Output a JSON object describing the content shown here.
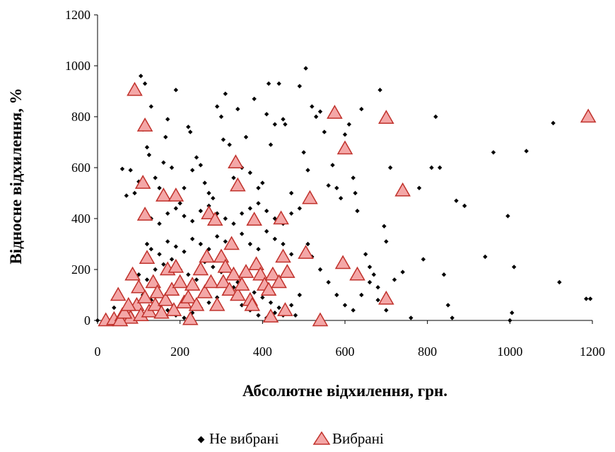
{
  "chart_data": {
    "type": "scatter",
    "xlabel": "Абсолютне відхилення, грн.",
    "ylabel": "Відносне відхилення, %",
    "xlim": [
      0,
      1200
    ],
    "ylim": [
      0,
      1200
    ],
    "xticks": [
      "0",
      "200",
      "400",
      "600",
      "800",
      "1000",
      "1200"
    ],
    "yticks": [
      "0",
      "200",
      "400",
      "600",
      "800",
      "1000",
      "1200"
    ],
    "grid": false,
    "legend_position": "bottom",
    "series": [
      {
        "name": "Не вибрані",
        "marker": "diamond",
        "color": "#000000",
        "points": [
          [
            0,
            0
          ],
          [
            40,
            50
          ],
          [
            60,
            595
          ],
          [
            70,
            490
          ],
          [
            80,
            590
          ],
          [
            90,
            500
          ],
          [
            100,
            545
          ],
          [
            105,
            960
          ],
          [
            110,
            750
          ],
          [
            115,
            930
          ],
          [
            120,
            680
          ],
          [
            125,
            650
          ],
          [
            130,
            840
          ],
          [
            140,
            560
          ],
          [
            150,
            520
          ],
          [
            160,
            620
          ],
          [
            165,
            720
          ],
          [
            170,
            790
          ],
          [
            180,
            600
          ],
          [
            190,
            905
          ],
          [
            200,
            460
          ],
          [
            210,
            520
          ],
          [
            220,
            760
          ],
          [
            225,
            740
          ],
          [
            230,
            590
          ],
          [
            240,
            640
          ],
          [
            250,
            610
          ],
          [
            260,
            540
          ],
          [
            270,
            500
          ],
          [
            280,
            480
          ],
          [
            290,
            840
          ],
          [
            300,
            800
          ],
          [
            305,
            710
          ],
          [
            310,
            890
          ],
          [
            320,
            690
          ],
          [
            330,
            560
          ],
          [
            340,
            830
          ],
          [
            350,
            600
          ],
          [
            360,
            720
          ],
          [
            370,
            580
          ],
          [
            380,
            870
          ],
          [
            390,
            520
          ],
          [
            400,
            540
          ],
          [
            410,
            810
          ],
          [
            415,
            930
          ],
          [
            420,
            690
          ],
          [
            430,
            770
          ],
          [
            440,
            930
          ],
          [
            450,
            790
          ],
          [
            455,
            770
          ],
          [
            470,
            500
          ],
          [
            490,
            920
          ],
          [
            500,
            660
          ],
          [
            505,
            990
          ],
          [
            510,
            590
          ],
          [
            520,
            840
          ],
          [
            530,
            800
          ],
          [
            540,
            820
          ],
          [
            550,
            740
          ],
          [
            560,
            530
          ],
          [
            570,
            610
          ],
          [
            580,
            520
          ],
          [
            590,
            480
          ],
          [
            600,
            730
          ],
          [
            610,
            770
          ],
          [
            620,
            560
          ],
          [
            625,
            500
          ],
          [
            630,
            430
          ],
          [
            640,
            830
          ],
          [
            650,
            260
          ],
          [
            660,
            210
          ],
          [
            670,
            180
          ],
          [
            680,
            130
          ],
          [
            685,
            905
          ],
          [
            695,
            370
          ],
          [
            700,
            310
          ],
          [
            710,
            600
          ],
          [
            720,
            160
          ],
          [
            740,
            190
          ],
          [
            760,
            10
          ],
          [
            780,
            520
          ],
          [
            790,
            240
          ],
          [
            810,
            600
          ],
          [
            820,
            800
          ],
          [
            830,
            600
          ],
          [
            840,
            180
          ],
          [
            850,
            60
          ],
          [
            860,
            10
          ],
          [
            870,
            470
          ],
          [
            890,
            450
          ],
          [
            940,
            250
          ],
          [
            960,
            660
          ],
          [
            995,
            410
          ],
          [
            1000,
            0
          ],
          [
            1005,
            30
          ],
          [
            1010,
            210
          ],
          [
            1040,
            665
          ],
          [
            1105,
            775
          ],
          [
            1120,
            150
          ],
          [
            1185,
            85
          ],
          [
            1195,
            85
          ],
          [
            120,
            300
          ],
          [
            130,
            280
          ],
          [
            150,
            260
          ],
          [
            170,
            310
          ],
          [
            190,
            290
          ],
          [
            210,
            270
          ],
          [
            230,
            320
          ],
          [
            250,
            300
          ],
          [
            270,
            280
          ],
          [
            290,
            330
          ],
          [
            310,
            310
          ],
          [
            330,
            290
          ],
          [
            350,
            340
          ],
          [
            370,
            300
          ],
          [
            390,
            280
          ],
          [
            410,
            350
          ],
          [
            430,
            320
          ],
          [
            450,
            300
          ],
          [
            470,
            260
          ],
          [
            100,
            180
          ],
          [
            120,
            160
          ],
          [
            140,
            200
          ],
          [
            160,
            220
          ],
          [
            180,
            240
          ],
          [
            200,
            200
          ],
          [
            220,
            180
          ],
          [
            240,
            160
          ],
          [
            260,
            230
          ],
          [
            280,
            210
          ],
          [
            300,
            190
          ],
          [
            320,
            170
          ],
          [
            340,
            150
          ],
          [
            360,
            130
          ],
          [
            380,
            110
          ],
          [
            400,
            90
          ],
          [
            420,
            70
          ],
          [
            440,
            50
          ],
          [
            460,
            30
          ],
          [
            480,
            20
          ],
          [
            130,
            400
          ],
          [
            150,
            380
          ],
          [
            170,
            420
          ],
          [
            190,
            440
          ],
          [
            210,
            410
          ],
          [
            230,
            390
          ],
          [
            250,
            430
          ],
          [
            270,
            450
          ],
          [
            290,
            420
          ],
          [
            310,
            400
          ],
          [
            330,
            380
          ],
          [
            350,
            420
          ],
          [
            370,
            440
          ],
          [
            390,
            460
          ],
          [
            410,
            430
          ],
          [
            430,
            400
          ],
          [
            450,
            380
          ],
          [
            470,
            420
          ],
          [
            490,
            440
          ],
          [
            510,
            300
          ],
          [
            520,
            250
          ],
          [
            540,
            200
          ],
          [
            560,
            150
          ],
          [
            580,
            100
          ],
          [
            600,
            60
          ],
          [
            620,
            40
          ],
          [
            640,
            100
          ],
          [
            660,
            150
          ],
          [
            680,
            80
          ],
          [
            700,
            40
          ],
          [
            110,
            100
          ],
          [
            130,
            80
          ],
          [
            150,
            60
          ],
          [
            170,
            40
          ],
          [
            190,
            20
          ],
          [
            210,
            10
          ],
          [
            230,
            30
          ],
          [
            250,
            50
          ],
          [
            270,
            70
          ],
          [
            290,
            90
          ],
          [
            310,
            110
          ],
          [
            330,
            130
          ],
          [
            350,
            60
          ],
          [
            370,
            40
          ],
          [
            390,
            20
          ],
          [
            410,
            10
          ],
          [
            430,
            30
          ],
          [
            450,
            20
          ],
          [
            470,
            60
          ],
          [
            490,
            100
          ]
        ]
      },
      {
        "name": "Вибрані",
        "marker": "triangle",
        "color": "#f4a7a7",
        "stroke": "#c0312b",
        "points": [
          [
            90,
            905
          ],
          [
            115,
            765
          ],
          [
            110,
            540
          ],
          [
            115,
            415
          ],
          [
            120,
            245
          ],
          [
            160,
            490
          ],
          [
            190,
            490
          ],
          [
            270,
            420
          ],
          [
            285,
            395
          ],
          [
            335,
            620
          ],
          [
            340,
            530
          ],
          [
            380,
            395
          ],
          [
            445,
            400
          ],
          [
            505,
            265
          ],
          [
            515,
            480
          ],
          [
            575,
            815
          ],
          [
            600,
            675
          ],
          [
            595,
            225
          ],
          [
            630,
            180
          ],
          [
            700,
            795
          ],
          [
            740,
            510
          ],
          [
            700,
            85
          ],
          [
            1190,
            800
          ],
          [
            540,
            0
          ],
          [
            420,
            15
          ],
          [
            225,
            5
          ],
          [
            20,
            0
          ],
          [
            40,
            5
          ],
          [
            60,
            20
          ],
          [
            70,
            40
          ],
          [
            80,
            10
          ],
          [
            85,
            180
          ],
          [
            95,
            60
          ],
          [
            100,
            130
          ],
          [
            105,
            20
          ],
          [
            115,
            90
          ],
          [
            125,
            35
          ],
          [
            135,
            150
          ],
          [
            140,
            60
          ],
          [
            145,
            110
          ],
          [
            155,
            30
          ],
          [
            165,
            80
          ],
          [
            170,
            200
          ],
          [
            180,
            120
          ],
          [
            185,
            40
          ],
          [
            190,
            210
          ],
          [
            200,
            150
          ],
          [
            210,
            70
          ],
          [
            220,
            90
          ],
          [
            230,
            140
          ],
          [
            240,
            60
          ],
          [
            250,
            200
          ],
          [
            260,
            110
          ],
          [
            265,
            250
          ],
          [
            275,
            150
          ],
          [
            290,
            60
          ],
          [
            300,
            250
          ],
          [
            305,
            150
          ],
          [
            310,
            210
          ],
          [
            320,
            120
          ],
          [
            325,
            300
          ],
          [
            330,
            180
          ],
          [
            340,
            100
          ],
          [
            350,
            140
          ],
          [
            360,
            190
          ],
          [
            370,
            80
          ],
          [
            375,
            60
          ],
          [
            385,
            220
          ],
          [
            395,
            180
          ],
          [
            405,
            140
          ],
          [
            415,
            120
          ],
          [
            425,
            180
          ],
          [
            440,
            150
          ],
          [
            450,
            250
          ],
          [
            455,
            40
          ],
          [
            460,
            190
          ],
          [
            50,
            100
          ],
          [
            55,
            0
          ],
          [
            65,
            30
          ],
          [
            75,
            60
          ]
        ]
      }
    ]
  }
}
